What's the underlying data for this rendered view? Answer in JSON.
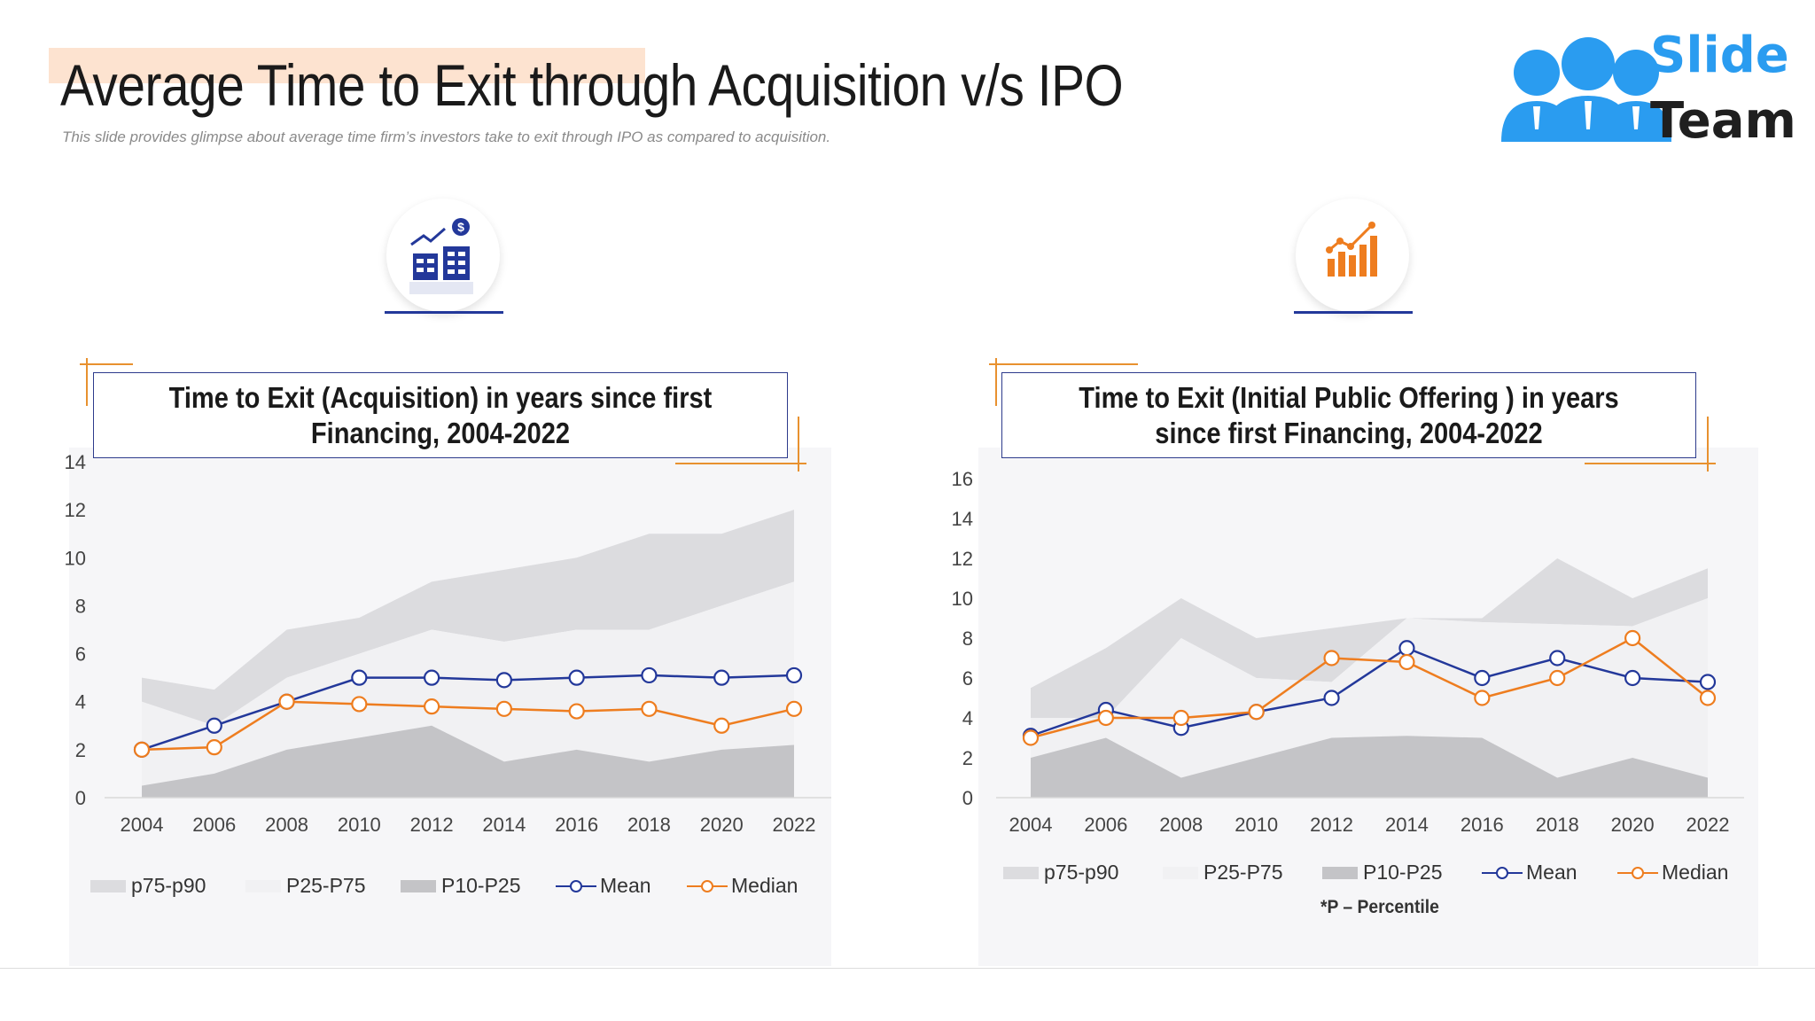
{
  "header": {
    "title": "Average Time to Exit through Acquisition v/s IPO",
    "subtitle": "This slide provides glimpse about average time firm’s investors take to exit through IPO as compared to acquisition."
  },
  "logo": {
    "line1": "Slide",
    "line2": "Team",
    "color": "#2a9cf0"
  },
  "icons": {
    "left": "buildings-dollar-icon",
    "right": "growth-bar-chart-icon"
  },
  "footnote": "*P – Percentile",
  "colors": {
    "p75_p90": "#dcdcdf",
    "p25_p75": "#f1f1f3",
    "p10_p25": "#c4c4c7",
    "mean": "#23389a",
    "median": "#ee7d1f",
    "accent": "#e8912f"
  },
  "legend_labels": [
    "p75-p90",
    "P25-P75",
    "P10-P25",
    "Mean",
    "Median"
  ],
  "chart_data": [
    {
      "type": "area",
      "title": "Time to Exit (Acquisition) in years since first Financing, 2004-2022",
      "xlabel": "",
      "ylabel": "",
      "x": [
        "2004",
        "2006",
        "2008",
        "2010",
        "2012",
        "2014",
        "2016",
        "2018",
        "2020",
        "2022"
      ],
      "ylim": [
        0,
        14
      ],
      "yticks": [
        0,
        2,
        4,
        6,
        8,
        10,
        12,
        14
      ],
      "series": [
        {
          "name": "p75-p90",
          "kind": "area-band",
          "low": [
            4,
            3,
            5,
            6,
            7,
            6.5,
            7,
            7,
            8,
            9
          ],
          "high": [
            5,
            4.5,
            7,
            7.5,
            9,
            9.5,
            10,
            11,
            11,
            12
          ]
        },
        {
          "name": "P25-P75",
          "kind": "area-band",
          "low": [
            0.5,
            1,
            2,
            2.5,
            3,
            1.5,
            2,
            1.5,
            2,
            2.2
          ],
          "high": [
            4,
            3,
            5,
            6,
            7,
            6.5,
            7,
            7,
            8,
            9
          ]
        },
        {
          "name": "P10-P25",
          "kind": "area-band",
          "low": [
            0,
            0,
            0,
            0,
            0,
            0,
            0,
            0,
            0,
            0
          ],
          "high": [
            0.5,
            1,
            2,
            2.5,
            3,
            1.5,
            2,
            1.5,
            2,
            2.2
          ]
        },
        {
          "name": "Mean",
          "kind": "line",
          "values": [
            2,
            3,
            4,
            5,
            5,
            4.9,
            5,
            5.1,
            5,
            5.1
          ]
        },
        {
          "name": "Median",
          "kind": "line",
          "values": [
            2,
            2.1,
            4,
            3.9,
            3.8,
            3.7,
            3.6,
            3.7,
            3,
            3.7
          ]
        }
      ],
      "legend": "bottom"
    },
    {
      "type": "area",
      "title": "Time to Exit (Initial Public Offering ) in years since first Financing, 2004-2022",
      "xlabel": "",
      "ylabel": "",
      "x": [
        "2004",
        "2006",
        "2008",
        "2010",
        "2012",
        "2014",
        "2016",
        "2018",
        "2020",
        "2022"
      ],
      "ylim": [
        0,
        16
      ],
      "yticks": [
        0,
        2,
        4,
        6,
        8,
        10,
        12,
        14,
        16
      ],
      "series": [
        {
          "name": "p75-p90",
          "kind": "area-band",
          "low": [
            4,
            4,
            8,
            6,
            5.8,
            9,
            8.8,
            8.7,
            8.6,
            10
          ],
          "high": [
            5.5,
            7.5,
            10,
            8,
            8.5,
            9,
            9,
            12,
            10,
            11.5
          ]
        },
        {
          "name": "P25-P75",
          "kind": "area-band",
          "low": [
            2,
            3,
            1,
            2,
            3,
            3.1,
            3,
            1,
            2,
            1
          ],
          "high": [
            4,
            4,
            8,
            6,
            5.8,
            9,
            8.8,
            8.7,
            8.6,
            10
          ]
        },
        {
          "name": "P10-P25",
          "kind": "area-band",
          "low": [
            0,
            0,
            0,
            0,
            0,
            0,
            0,
            0,
            0,
            0
          ],
          "high": [
            2,
            3,
            1,
            2,
            3,
            3.1,
            3,
            1,
            2,
            1
          ]
        },
        {
          "name": "Mean",
          "kind": "line",
          "values": [
            3.1,
            4.4,
            3.5,
            4.3,
            5,
            7.5,
            6,
            7,
            6,
            5.8
          ]
        },
        {
          "name": "Median",
          "kind": "line",
          "values": [
            3,
            4,
            4,
            4.3,
            7,
            6.8,
            5,
            6,
            8,
            5
          ]
        }
      ],
      "legend": "bottom"
    }
  ]
}
